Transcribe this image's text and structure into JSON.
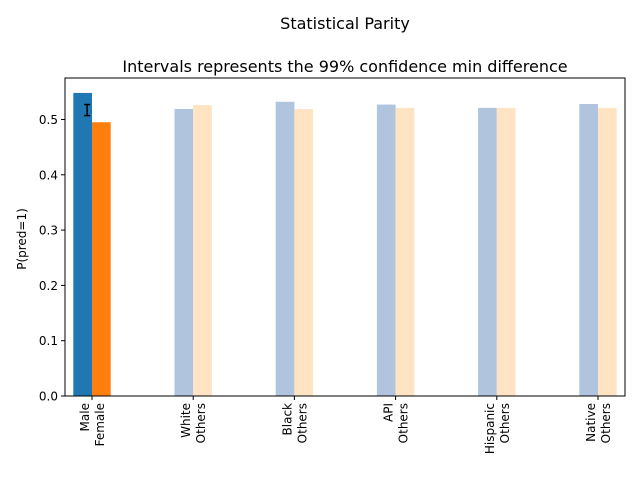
{
  "chart_data": {
    "type": "bar",
    "suptitle": "Statistical Parity",
    "title": "Intervals represents the 99% confidence min difference",
    "xlabel": "",
    "ylabel": "P(pred=1)",
    "ylim": [
      0,
      0.575
    ],
    "yticks": [
      "0.0",
      "0.1",
      "0.2",
      "0.3",
      "0.4",
      "0.5"
    ],
    "grid": false,
    "groups": [
      {
        "label1": "Male",
        "label2": "Female",
        "values": [
          0.548,
          0.495
        ],
        "colors": [
          "#1f77b4",
          "#ff7f0e"
        ],
        "interval": [
          0.507,
          0.527
        ]
      },
      {
        "label1": "White",
        "label2": "Others",
        "values": [
          0.519,
          0.526
        ],
        "colors": [
          "#b0c4de",
          "#ffe4c4"
        ]
      },
      {
        "label1": "Black",
        "label2": "Others",
        "values": [
          0.532,
          0.519
        ],
        "colors": [
          "#b0c4de",
          "#ffe4c4"
        ]
      },
      {
        "label1": "API",
        "label2": "Others",
        "values": [
          0.527,
          0.521
        ],
        "colors": [
          "#b0c4de",
          "#ffe4c4"
        ]
      },
      {
        "label1": "Hispanic",
        "label2": "Others",
        "values": [
          0.521,
          0.521
        ],
        "colors": [
          "#b0c4de",
          "#ffe4c4"
        ]
      },
      {
        "label1": "Native",
        "label2": "Others",
        "values": [
          0.528,
          0.521
        ],
        "colors": [
          "#b0c4de",
          "#ffe4c4"
        ]
      }
    ]
  }
}
